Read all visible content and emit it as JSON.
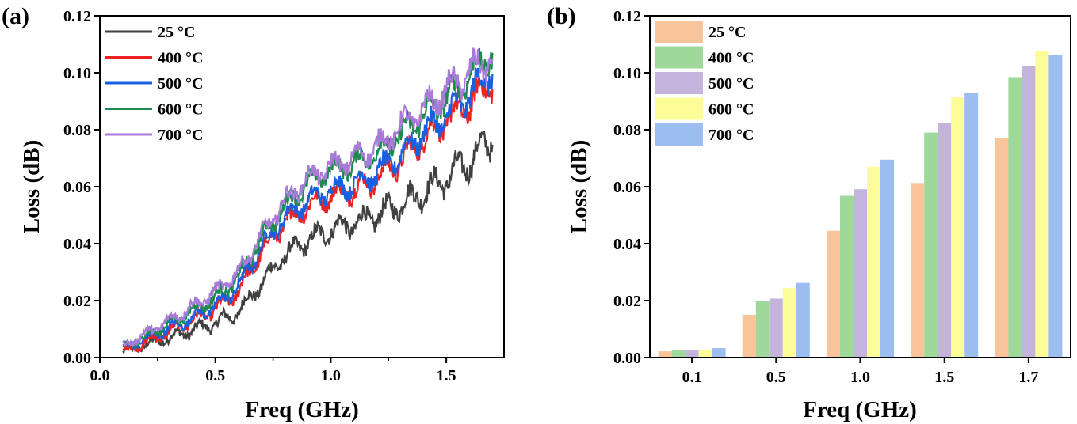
{
  "chart_data": [
    {
      "panel": "(a)",
      "type": "line",
      "xlabel": "Freq (GHz)",
      "ylabel": "Loss (dB)",
      "xlim": [
        0.0,
        1.75
      ],
      "ylim": [
        0.0,
        0.12
      ],
      "xticks": [
        "0.0",
        "0.5",
        "1.0",
        "1.5"
      ],
      "yticks": [
        "0.00",
        "0.02",
        "0.04",
        "0.06",
        "0.08",
        "0.10",
        "0.12"
      ],
      "legend_position": "top-left",
      "grid": false,
      "series": [
        {
          "name": "25 °C",
          "color": "#404040",
          "x": [
            0.1,
            0.3,
            0.5,
            0.6,
            0.7,
            0.8,
            0.9,
            1.0,
            1.1,
            1.2,
            1.3,
            1.4,
            1.5,
            1.6,
            1.7
          ],
          "y": [
            0.002,
            0.007,
            0.012,
            0.016,
            0.026,
            0.036,
            0.041,
            0.045,
            0.047,
            0.05,
            0.054,
            0.058,
            0.063,
            0.069,
            0.077
          ]
        },
        {
          "name": "400 °C",
          "color": "#ee2222",
          "x": [
            0.1,
            0.3,
            0.5,
            0.6,
            0.7,
            0.8,
            0.9,
            1.0,
            1.1,
            1.2,
            1.3,
            1.4,
            1.5,
            1.6,
            1.7
          ],
          "y": [
            0.002,
            0.009,
            0.017,
            0.023,
            0.037,
            0.047,
            0.053,
            0.057,
            0.059,
            0.063,
            0.069,
            0.077,
            0.083,
            0.089,
            0.097
          ]
        },
        {
          "name": "500 °C",
          "color": "#1a5fe0",
          "x": [
            0.1,
            0.3,
            0.5,
            0.6,
            0.7,
            0.8,
            0.9,
            1.0,
            1.1,
            1.2,
            1.3,
            1.4,
            1.5,
            1.6,
            1.7
          ],
          "y": [
            0.003,
            0.01,
            0.018,
            0.025,
            0.039,
            0.049,
            0.055,
            0.059,
            0.061,
            0.065,
            0.071,
            0.079,
            0.085,
            0.092,
            0.101
          ]
        },
        {
          "name": "600 °C",
          "color": "#1e8a50",
          "x": [
            0.1,
            0.3,
            0.5,
            0.6,
            0.7,
            0.8,
            0.9,
            1.0,
            1.1,
            1.2,
            1.3,
            1.4,
            1.5,
            1.6,
            1.7
          ],
          "y": [
            0.003,
            0.012,
            0.021,
            0.028,
            0.042,
            0.053,
            0.061,
            0.066,
            0.068,
            0.072,
            0.078,
            0.085,
            0.091,
            0.099,
            0.107
          ]
        },
        {
          "name": "700 °C",
          "color": "#a87bd8",
          "x": [
            0.1,
            0.3,
            0.5,
            0.6,
            0.7,
            0.8,
            0.9,
            1.0,
            1.1,
            1.2,
            1.3,
            1.4,
            1.5,
            1.6,
            1.7
          ],
          "y": [
            0.004,
            0.013,
            0.023,
            0.03,
            0.043,
            0.055,
            0.063,
            0.067,
            0.07,
            0.074,
            0.081,
            0.087,
            0.094,
            0.1,
            0.106
          ]
        }
      ]
    },
    {
      "panel": "(b)",
      "type": "bar",
      "xlabel": "Freq (GHz)",
      "ylabel": "Loss (dB)",
      "ylim": [
        0.0,
        0.12
      ],
      "yticks": [
        "0.00",
        "0.02",
        "0.04",
        "0.06",
        "0.08",
        "0.10",
        "0.12"
      ],
      "categories": [
        "0.1",
        "0.5",
        "1.0",
        "1.5",
        "1.7"
      ],
      "legend_position": "top-left",
      "grid": false,
      "series": [
        {
          "name": "25 °C",
          "color": "#f9c49a",
          "values": [
            0.0022,
            0.015,
            0.0445,
            0.0613,
            0.0772
          ]
        },
        {
          "name": "400 °C",
          "color": "#9fd89b",
          "values": [
            0.0025,
            0.0198,
            0.0568,
            0.079,
            0.0985
          ]
        },
        {
          "name": "500 °C",
          "color": "#c4b3da",
          "values": [
            0.0027,
            0.0207,
            0.0591,
            0.0825,
            0.1023
          ]
        },
        {
          "name": "600 °C",
          "color": "#fcfc99",
          "values": [
            0.0027,
            0.0244,
            0.067,
            0.0916,
            0.1078
          ]
        },
        {
          "name": "700 °C",
          "color": "#9cbdf0",
          "values": [
            0.0033,
            0.0262,
            0.0695,
            0.093,
            0.1063
          ]
        }
      ]
    }
  ]
}
